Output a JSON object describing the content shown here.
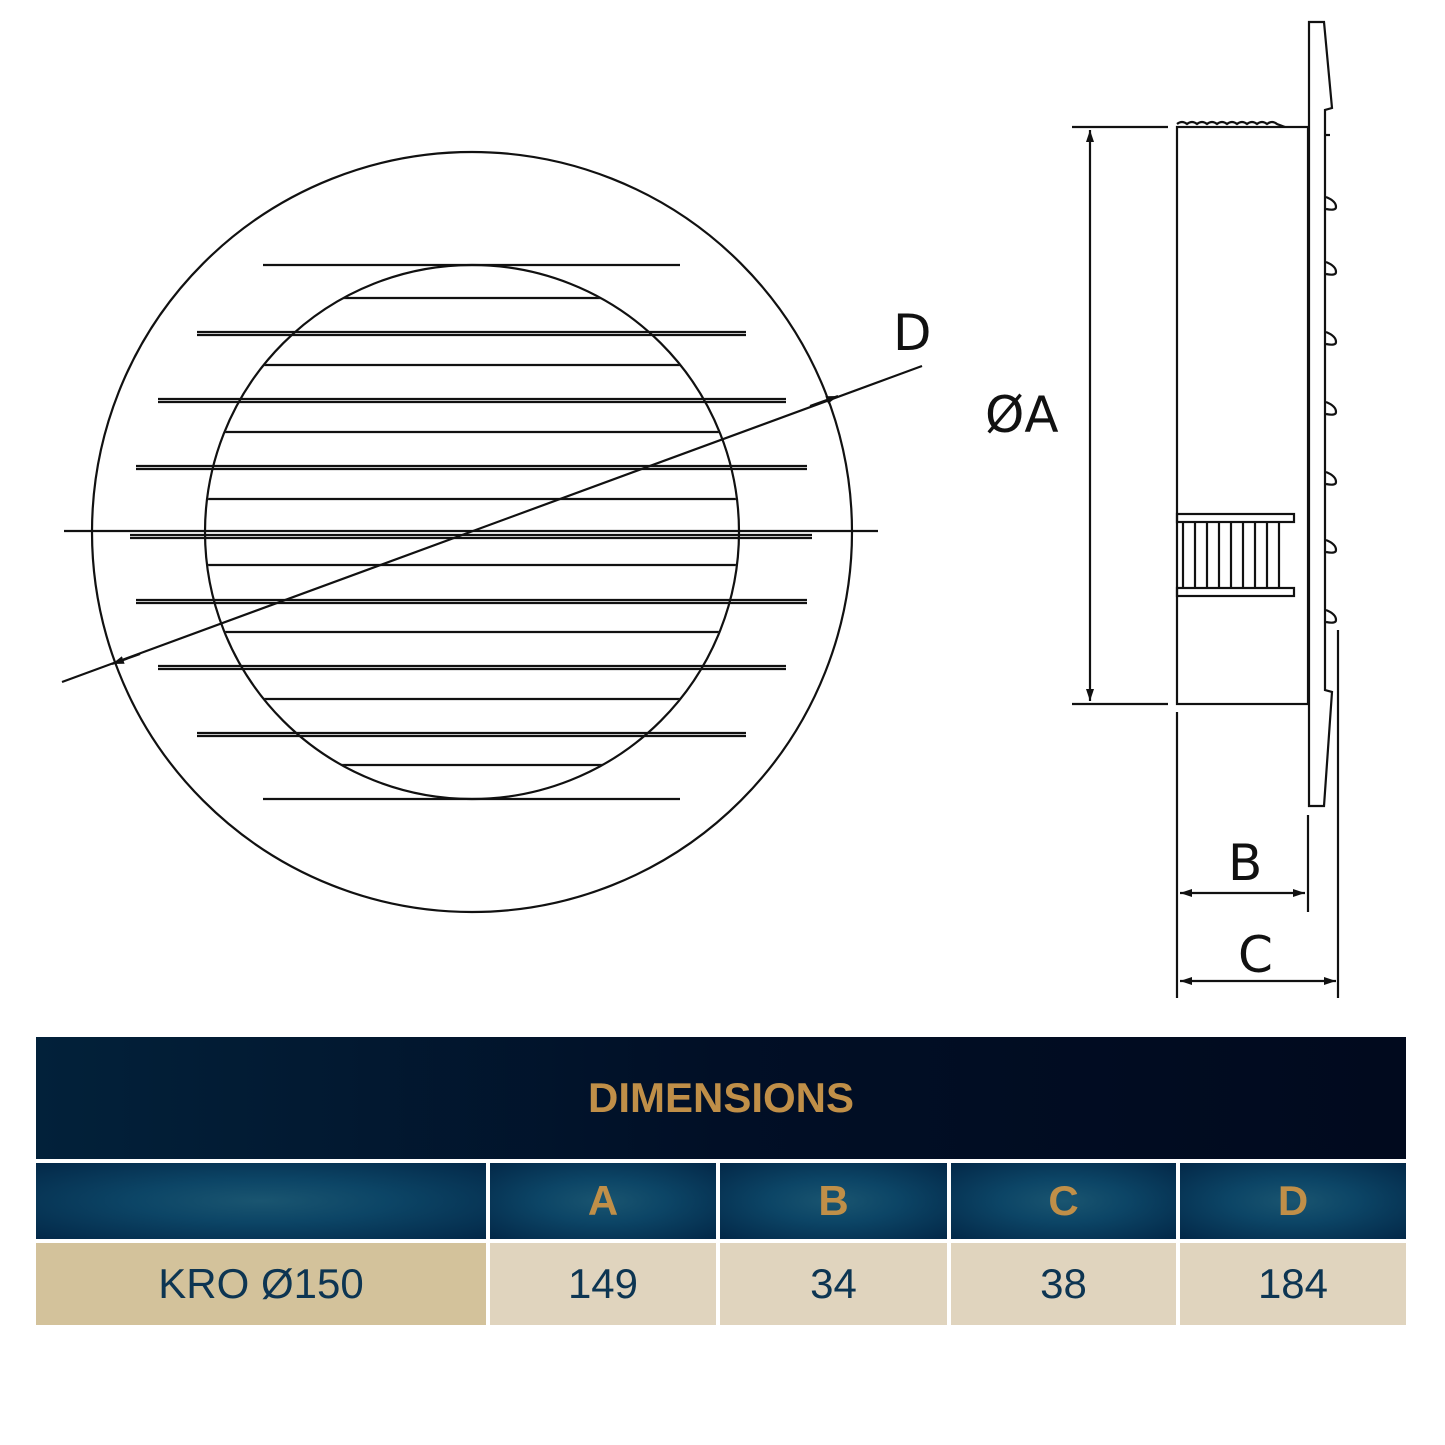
{
  "labels": {
    "d": "D",
    "a": "ØA",
    "b": "B",
    "c": "C"
  },
  "table": {
    "title": "DIMENSIONS",
    "headers": [
      "",
      "A",
      "B",
      "C",
      "D"
    ],
    "rows": [
      [
        "KRO Ø150",
        "149",
        "34",
        "38",
        "184"
      ]
    ]
  },
  "colors": {
    "header_text": "#c08f48",
    "title_bg": "#010f26",
    "header_bg": "#0c4566",
    "cell_bg": "#e0d4be",
    "model_cell_bg": "#d3c29b",
    "cell_text": "#0d3552"
  }
}
